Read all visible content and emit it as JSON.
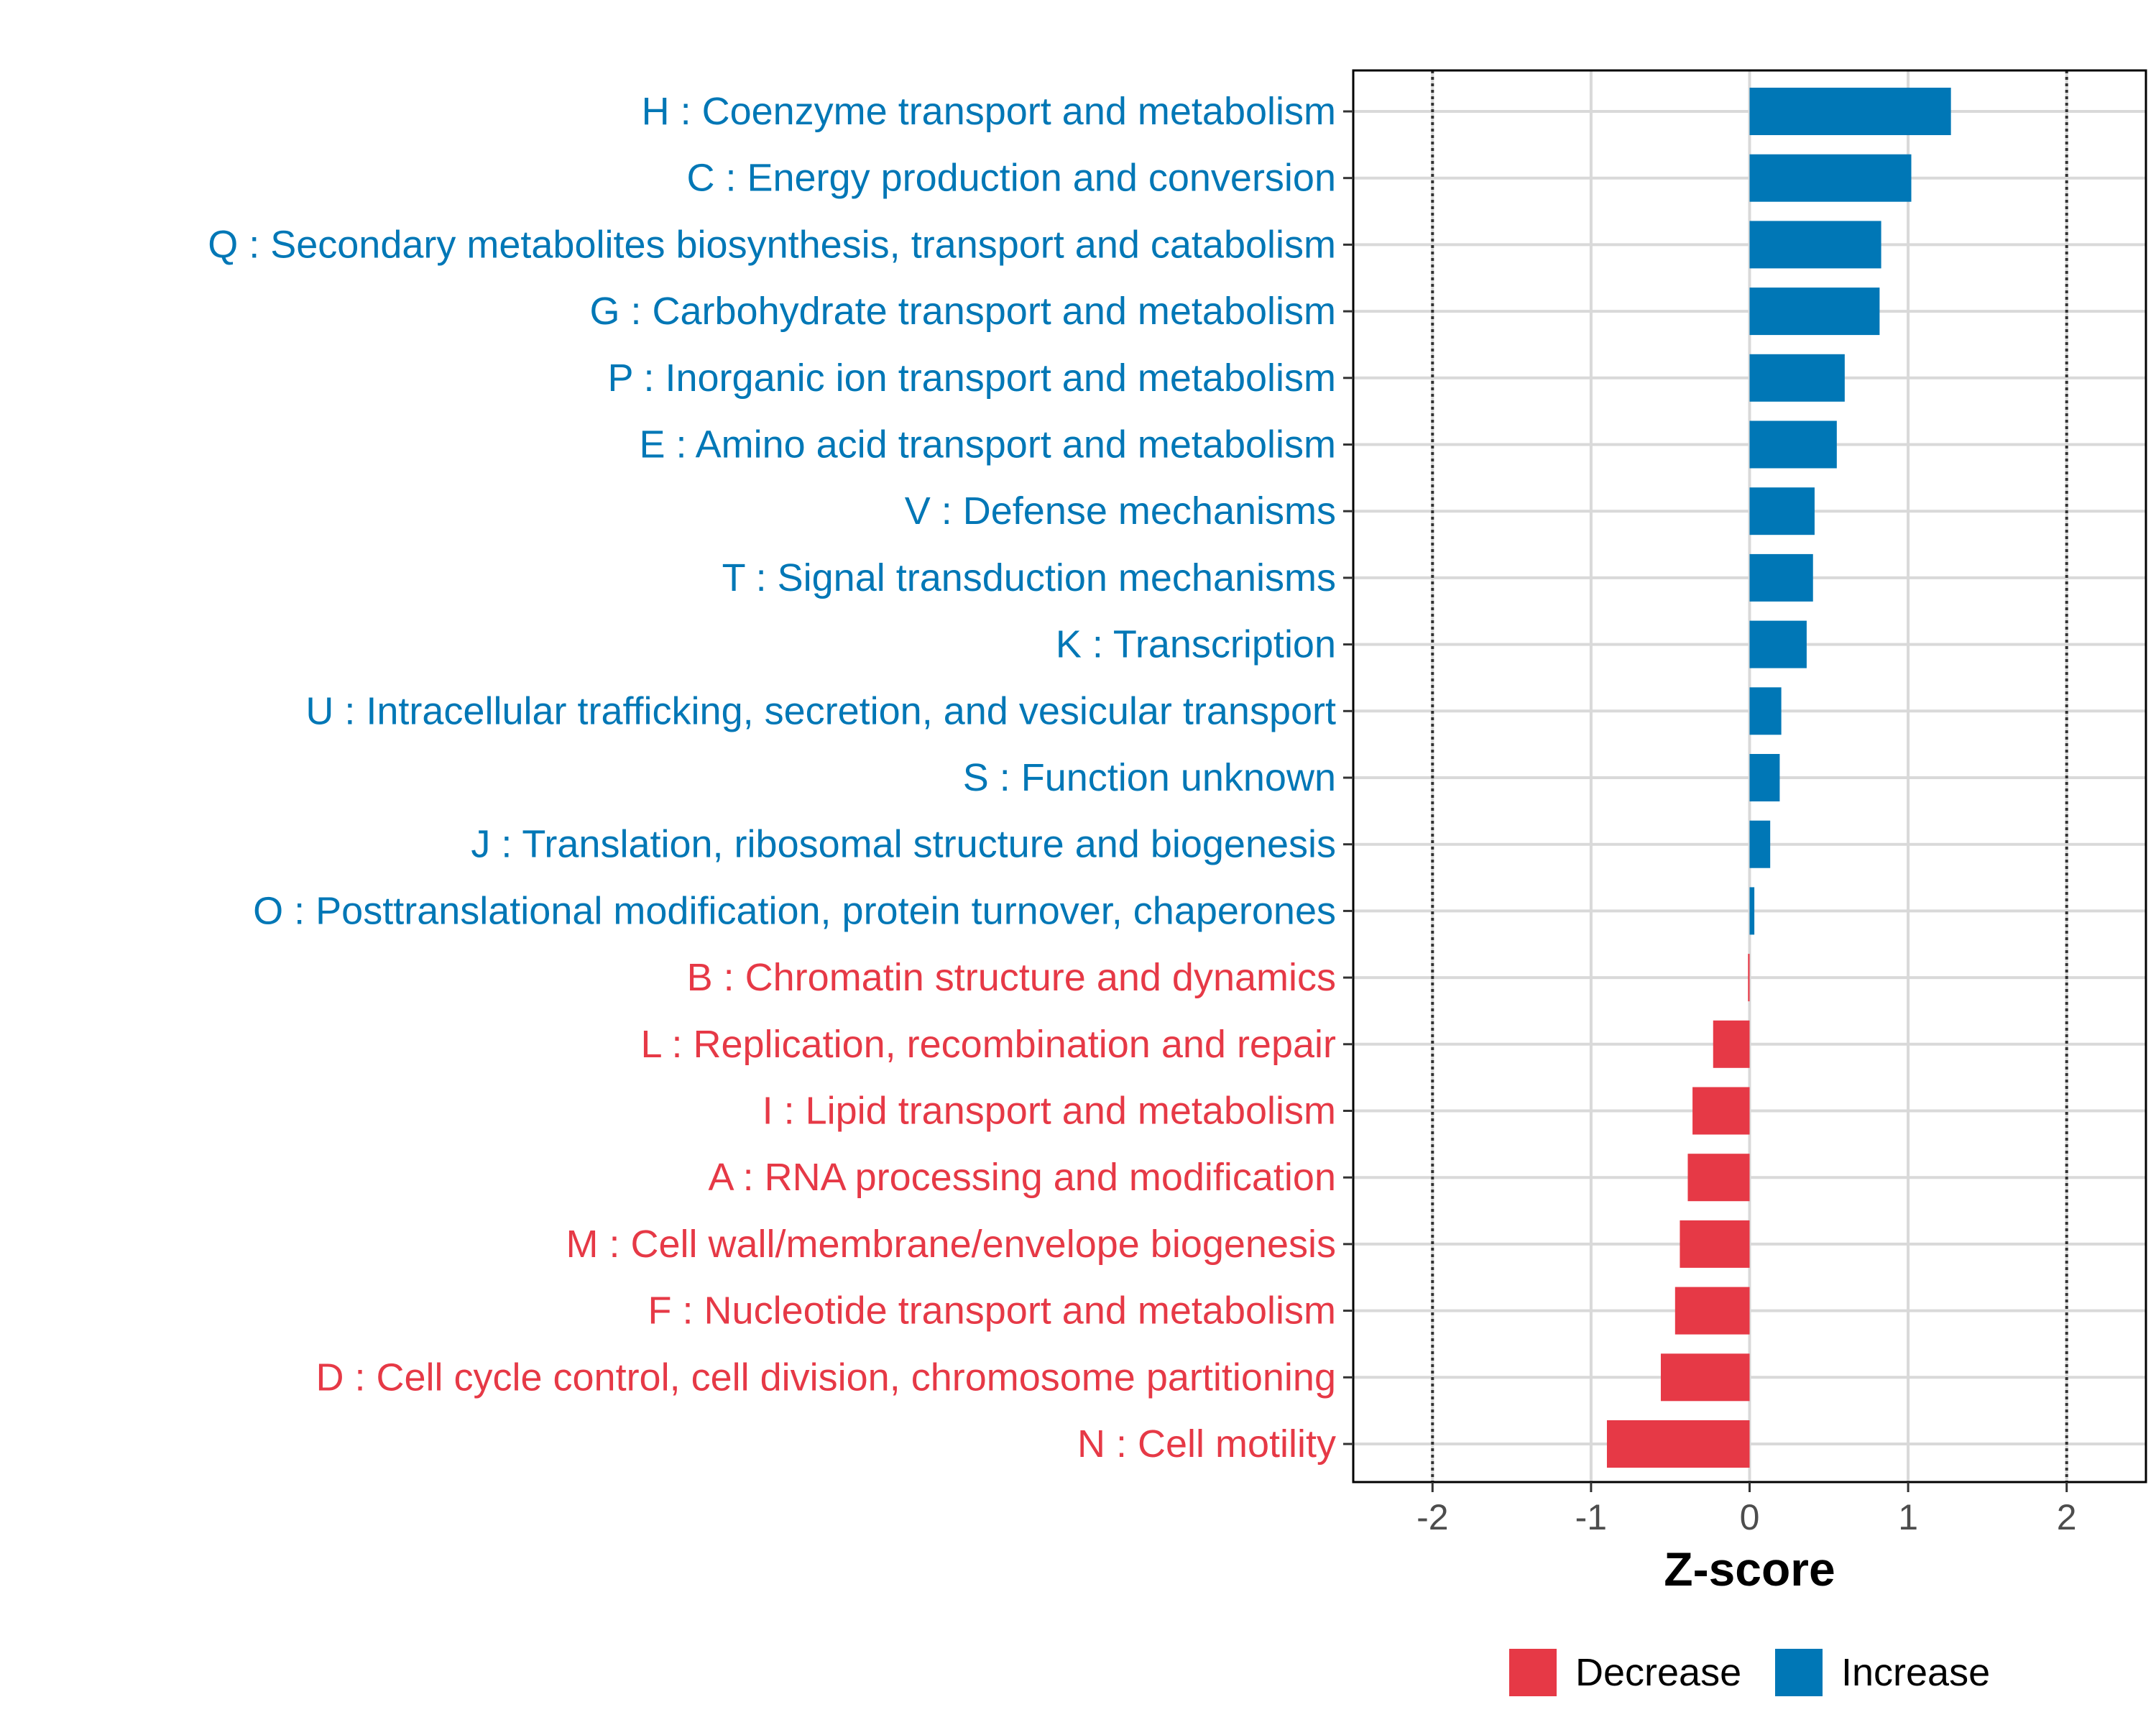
{
  "chart_data": {
    "type": "bar",
    "orientation": "horizontal",
    "title": "",
    "xlabel": "Z-score",
    "ylabel": "",
    "xlim": [
      -2.5,
      2.5
    ],
    "x_ticks": [
      -2,
      -1,
      0,
      1,
      2
    ],
    "x_tick_labels": [
      "-2",
      "-1",
      "0",
      "1",
      "2"
    ],
    "reference_lines": [
      -2,
      2
    ],
    "grid": true,
    "legend_position": "bottom",
    "colors": {
      "Decrease": "#E63946",
      "Increase": "#0077B6"
    },
    "legend": [
      {
        "label": "Decrease",
        "color": "#E63946"
      },
      {
        "label": "Increase",
        "color": "#0077B6"
      }
    ],
    "categories": [
      "H : Coenzyme transport and metabolism",
      "C : Energy production and conversion",
      "Q : Secondary metabolites biosynthesis, transport and catabolism",
      "G : Carbohydrate transport and metabolism",
      "P : Inorganic ion transport and metabolism",
      "E : Amino acid transport and metabolism",
      "V : Defense mechanisms",
      "T : Signal transduction mechanisms",
      "K : Transcription",
      "U : Intracellular trafficking, secretion, and vesicular transport",
      "S : Function unknown",
      "J : Translation, ribosomal structure and biogenesis",
      "O : Posttranslational modification, protein turnover, chaperones",
      "B : Chromatin structure and dynamics",
      "L : Replication, recombination and repair",
      "I : Lipid transport and metabolism",
      "A : RNA processing and modification",
      "M : Cell wall/membrane/envelope biogenesis",
      "F : Nucleotide transport and metabolism",
      "D : Cell cycle control, cell division, chromosome partitioning",
      "N : Cell motility"
    ],
    "values": [
      1.27,
      1.02,
      0.83,
      0.82,
      0.6,
      0.55,
      0.41,
      0.4,
      0.36,
      0.2,
      0.19,
      0.13,
      0.03,
      -0.01,
      -0.23,
      -0.36,
      -0.39,
      -0.44,
      -0.47,
      -0.56,
      -0.9
    ],
    "groups": [
      "Increase",
      "Increase",
      "Increase",
      "Increase",
      "Increase",
      "Increase",
      "Increase",
      "Increase",
      "Increase",
      "Increase",
      "Increase",
      "Increase",
      "Increase",
      "Decrease",
      "Decrease",
      "Decrease",
      "Decrease",
      "Decrease",
      "Decrease",
      "Decrease",
      "Decrease"
    ]
  }
}
